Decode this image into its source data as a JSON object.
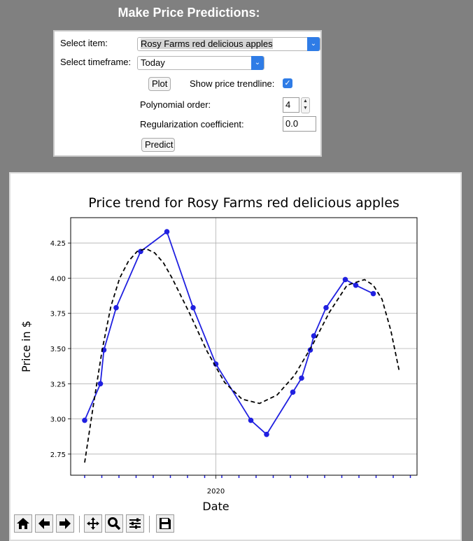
{
  "title": "Make Price Predictions:",
  "controls": {
    "item_label": "Select item:",
    "item_value": "Rosy Farms red delicious apples",
    "timeframe_label": "Select timeframe:",
    "timeframe_value": "Today",
    "plot_button": "Plot",
    "trendline_label": "Show price trendline:",
    "trendline_checked": true,
    "poly_label": "Polynomial order:",
    "poly_value": "4",
    "reg_label": "Regularization coefficient:",
    "reg_value": "0.0",
    "predict_button": "Predict"
  },
  "toolbar": {
    "icons": [
      "home-icon",
      "back-arrow-icon",
      "forward-arrow-icon",
      "pan-icon",
      "zoom-icon",
      "configure-subplots-icon",
      "save-icon"
    ]
  },
  "chart_data": {
    "type": "line",
    "title": "Price trend for Rosy Farms red delicious apples",
    "xlabel": "Date",
    "ylabel": "Price in $",
    "x_tick_labels": [
      "2020"
    ],
    "y_ticks": [
      "2.75",
      "3.00",
      "3.25",
      "3.50",
      "3.75",
      "4.00",
      "4.25"
    ],
    "ylim": [
      2.6,
      4.43
    ],
    "grid": true,
    "series": [
      {
        "style": "solid-line-with-markers",
        "color": "#2020e0",
        "x": [
          0.0,
          0.9,
          1.1,
          1.8,
          3.2,
          4.7,
          6.2,
          7.5,
          9.5,
          10.4,
          11.9,
          12.4,
          12.9,
          13.1,
          13.8,
          14.9,
          15.5,
          16.5
        ],
        "values": [
          2.99,
          3.25,
          3.49,
          3.79,
          4.19,
          4.33,
          3.79,
          3.39,
          2.99,
          2.89,
          3.19,
          3.29,
          3.49,
          3.59,
          3.79,
          3.99,
          3.95,
          3.89
        ]
      },
      {
        "style": "dashed-trendline",
        "color": "#000000",
        "x": [
          0.0,
          0.5,
          1.0,
          1.5,
          2.0,
          2.5,
          3.0,
          3.5,
          4.0,
          4.5,
          5.0,
          6.0,
          7.0,
          8.0,
          9.0,
          10.0,
          11.0,
          12.0,
          13.0,
          14.0,
          15.0,
          16.0,
          16.5,
          17.0,
          17.5,
          18.0
        ],
        "values": [
          2.69,
          3.1,
          3.49,
          3.8,
          4.0,
          4.12,
          4.19,
          4.21,
          4.18,
          4.11,
          4.0,
          3.75,
          3.48,
          3.26,
          3.14,
          3.11,
          3.17,
          3.31,
          3.52,
          3.76,
          3.95,
          3.99,
          3.95,
          3.85,
          3.63,
          3.33
        ]
      }
    ]
  }
}
